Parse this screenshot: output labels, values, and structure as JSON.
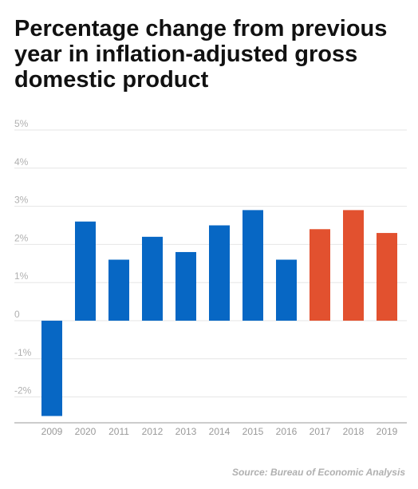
{
  "title": "Percentage change from previous year in inflation-adjusted gross domestic product",
  "source": "Source: Bureau of Economic Analysis",
  "colors": {
    "primary": "#0767c4",
    "highlight": "#e2512f"
  },
  "chart_data": {
    "type": "bar",
    "title": "Percentage change from previous year in inflation-adjusted gross domestic product",
    "xlabel": "",
    "ylabel": "",
    "ylim": [
      -2.5,
      5
    ],
    "grid": true,
    "y_ticks": [
      5,
      4,
      3,
      2,
      1,
      0,
      -1,
      -2
    ],
    "y_tick_labels": [
      "5%",
      "4%",
      "3%",
      "2%",
      "1%",
      "0",
      "-1%",
      "-2%"
    ],
    "categories": [
      "2009",
      "2020",
      "2011",
      "2012",
      "2013",
      "2014",
      "2015",
      "2016",
      "2017",
      "2018",
      "2019"
    ],
    "values": [
      -2.5,
      2.6,
      1.6,
      2.2,
      1.8,
      2.5,
      2.9,
      1.6,
      2.4,
      2.9,
      2.3
    ],
    "bar_colors": [
      "#0767c4",
      "#0767c4",
      "#0767c4",
      "#0767c4",
      "#0767c4",
      "#0767c4",
      "#0767c4",
      "#0767c4",
      "#e2512f",
      "#e2512f",
      "#e2512f"
    ]
  }
}
